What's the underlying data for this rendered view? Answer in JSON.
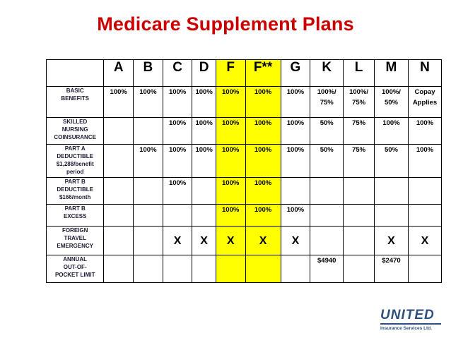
{
  "title": "Medicare Supplement Plans",
  "plans": [
    "A",
    "B",
    "C",
    "D",
    "F",
    "F**",
    "G",
    "K",
    "L",
    "M",
    "N"
  ],
  "highlight_color": "#ffff00",
  "title_color": "#cc0000",
  "rows": [
    {
      "label_lines": [
        "BASIC",
        "BENEFITS"
      ],
      "cells": [
        "100%",
        "100%",
        "100%",
        "100%",
        "100%",
        "100%",
        "100%",
        "100%/ 75%",
        "100%/ 75%",
        "100%/ 50%",
        "Copay Applies"
      ]
    },
    {
      "label_lines": [
        "SKILLED",
        "NURSING",
        "COINSURANCE"
      ],
      "cells": [
        "",
        "",
        "100%",
        "100%",
        "100%",
        "100%",
        "100%",
        "50%",
        "75%",
        "100%",
        "100%"
      ]
    },
    {
      "label_lines": [
        "PART A",
        "DEDUCTIBLE",
        "$1,288/benefit",
        "period"
      ],
      "cells": [
        "",
        "100%",
        "100%",
        "100%",
        "100%",
        "100%",
        "100%",
        "50%",
        "75%",
        "50%",
        "100%"
      ]
    },
    {
      "label_lines": [
        "PART B",
        "DEDUCTIBLE",
        "$166/month"
      ],
      "cells": [
        "",
        "",
        "100%",
        "",
        "100%",
        "100%",
        "",
        "",
        "",
        "",
        ""
      ]
    },
    {
      "label_lines": [
        "PART B",
        "EXCESS"
      ],
      "cells": [
        "",
        "",
        "",
        "",
        "100%",
        "100%",
        "100%",
        "",
        "",
        "",
        ""
      ]
    },
    {
      "label_lines": [
        "FOREIGN",
        "TRAVEL",
        "EMERGENCY"
      ],
      "cells": [
        "",
        "",
        "X",
        "X",
        "X",
        "X",
        "X",
        "",
        "",
        "X",
        "X"
      ]
    },
    {
      "label_lines": [
        "ANNUAL",
        "OUT-OF-",
        "POCKET LIMIT"
      ],
      "cells": [
        "",
        "",
        "",
        "",
        "",
        "",
        "",
        "$4940",
        "",
        "$2470",
        ""
      ]
    }
  ],
  "logo": {
    "name": "UNITED",
    "subtitle": "Insurance Services Ltd."
  }
}
